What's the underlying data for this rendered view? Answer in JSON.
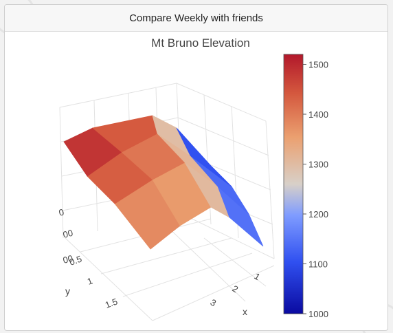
{
  "card": {
    "title": "Compare Weekly with friends"
  },
  "chart_data": {
    "type": "surface",
    "title": "Mt Bruno Elevation",
    "xlabel": "x",
    "ylabel": "y",
    "zlabel": "",
    "x_ticks": [
      "1",
      "2",
      "3"
    ],
    "y_ticks": [
      "0.5",
      "1",
      "1.5"
    ],
    "z_ticks": [
      "00",
      "00",
      "0"
    ],
    "colorscale": "RdBu-reversed (coolwarm)",
    "colorbar": {
      "range": [
        1000,
        1520
      ],
      "ticks": [
        "1000",
        "1100",
        "1200",
        "1300",
        "1400",
        "1500"
      ],
      "colors": [
        "#0a0aa0",
        "#5a78ff",
        "#d8d0c8",
        "#e8935a",
        "#b2182b"
      ]
    },
    "surface_z": [
      [
        1360,
        1340,
        1320,
        1240,
        1000
      ],
      [
        1420,
        1400,
        1380,
        1280,
        1060
      ],
      [
        1470,
        1450,
        1390,
        1200,
        1000
      ],
      [
        1520,
        1500,
        1420,
        1180,
        1040
      ]
    ]
  }
}
